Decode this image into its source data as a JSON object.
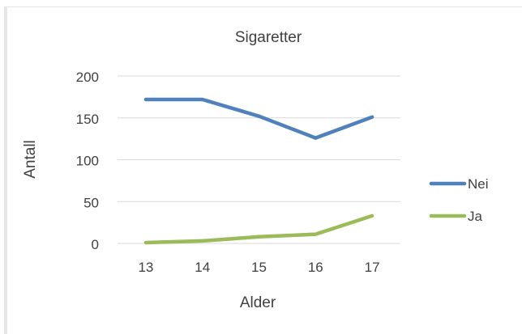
{
  "chart_data": {
    "type": "line",
    "title": "Sigaretter",
    "xlabel": "Alder",
    "ylabel": "Antall",
    "categories": [
      "13",
      "14",
      "15",
      "16",
      "17"
    ],
    "ylim": [
      0,
      200
    ],
    "yticks": [
      0,
      50,
      100,
      150,
      200
    ],
    "grid": true,
    "legend_position": "right",
    "series": [
      {
        "name": "Nei",
        "color": "#4f81bd",
        "values": [
          172,
          172,
          152,
          126,
          151
        ]
      },
      {
        "name": "Ja",
        "color": "#9bbb59",
        "values": [
          1,
          3,
          8,
          11,
          33
        ]
      }
    ]
  }
}
